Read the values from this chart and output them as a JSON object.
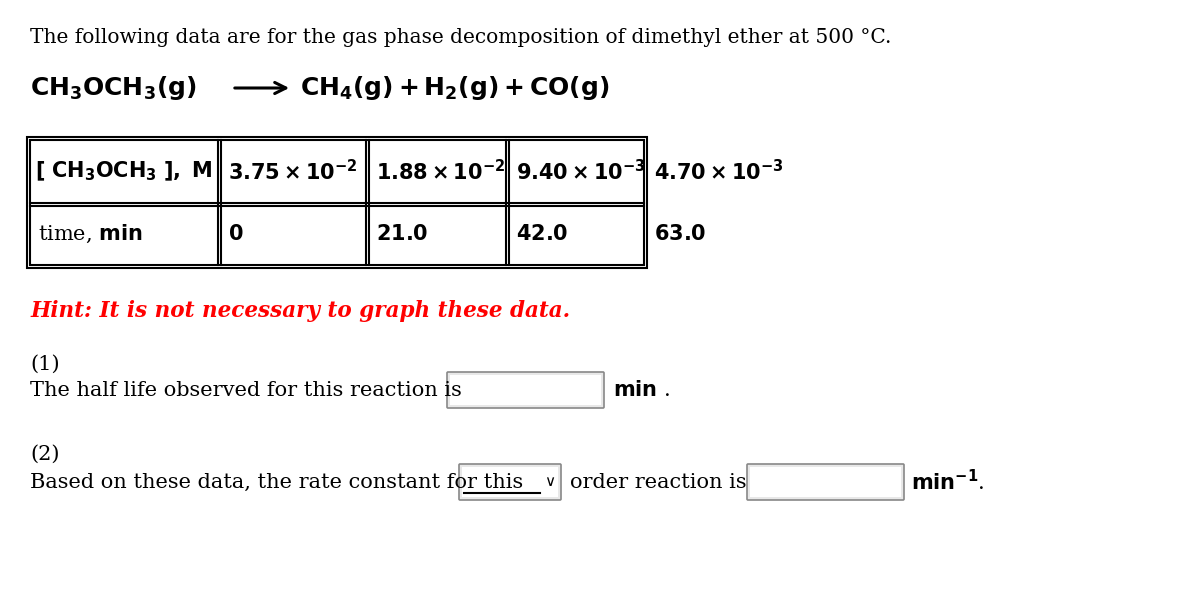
{
  "bg_color": "#ffffff",
  "title_text": "The following data are for the gas phase decomposition of dimethyl ether at 500 °C.",
  "text_color": "#000000",
  "hint_color": "#ff0000",
  "hint_text": "Hint: It is not necessary to graph these data.",
  "q1_label": "(1)",
  "q1_text": "The half life observed for this reaction is",
  "q1_unit": "min .",
  "q2_label": "(2)",
  "q2_text": "Based on these data, the rate constant for this",
  "q2_mid": "order reaction is",
  "q2_unit_text": "min",
  "row1_render": [
    "$\\mathbf{3.75\\times10^{-2}}$",
    "$\\mathbf{1.88\\times10^{-2}}$",
    "$\\mathbf{9.40\\times10^{-3}}$",
    "$\\mathbf{4.70\\times10^{-3}}$"
  ],
  "row2_render": [
    "\\textbf{0}",
    "\\textbf{21.0}",
    "\\textbf{42.0}",
    "\\textbf{63.0}"
  ],
  "font_size_title": 14.5,
  "font_size_reaction": 18,
  "font_size_table": 15,
  "font_size_hint": 15.5,
  "font_size_questions": 15
}
